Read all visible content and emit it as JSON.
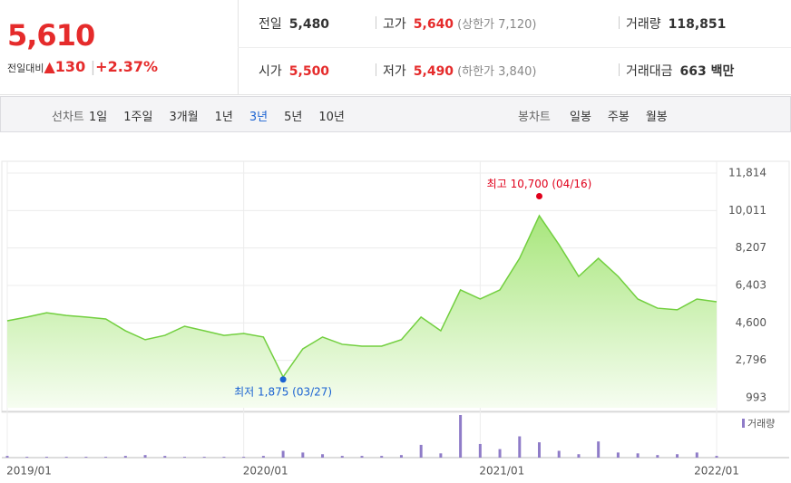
{
  "quote": {
    "price": "5,610",
    "change_label": "전일대비",
    "direction": "▲",
    "change": "130",
    "rate": "+2.37%"
  },
  "summary": {
    "rows": [
      [
        {
          "label": "전일",
          "value": "5,480",
          "note": null
        },
        {
          "label": "고가",
          "value": "5,640",
          "note": "(상한가 7,120)"
        },
        {
          "label": "거래량",
          "value": "118,851",
          "note": null
        }
      ],
      [
        {
          "label": "시가",
          "value": "5,500",
          "note": null
        },
        {
          "label": "저가",
          "value": "5,490",
          "note": "(하한가 3,840)"
        },
        {
          "label": "거래대금",
          "value": "663 백만",
          "note": null
        }
      ]
    ],
    "highlight": [
      [
        false,
        true,
        false
      ],
      [
        true,
        true,
        false
      ]
    ]
  },
  "tabs": {
    "line_label": "선차트",
    "line_items": [
      "1일",
      "1주일",
      "3개월",
      "1년",
      "3년",
      "5년",
      "10년"
    ],
    "selected": 4,
    "candle_label": "봉차트",
    "candle_items": [
      "일봉",
      "주봉",
      "월봉"
    ]
  },
  "chart_data": {
    "type": "area",
    "color": "#72cf3f",
    "categories": [
      "2019/01",
      null,
      null,
      null,
      null,
      null,
      null,
      null,
      null,
      null,
      null,
      null,
      "2020/01",
      null,
      null,
      null,
      null,
      null,
      null,
      null,
      null,
      null,
      null,
      null,
      "2021/01",
      null,
      null,
      null,
      null,
      null,
      null,
      null,
      null,
      null,
      null,
      null,
      "2022/01"
    ],
    "values": [
      4700,
      4880,
      5090,
      4960,
      4880,
      4790,
      4220,
      3790,
      4000,
      4440,
      4220,
      4000,
      4090,
      3920,
      2000,
      3350,
      3920,
      3570,
      3480,
      3480,
      3790,
      4880,
      4220,
      6190,
      5750,
      6190,
      7710,
      9760,
      8370,
      6840,
      7710,
      6840,
      5750,
      5310,
      5230,
      5750,
      5620
    ],
    "ylim": [
      993,
      11814
    ],
    "yticks": [
      {
        "value": 993,
        "label": "993"
      },
      {
        "value": 2796,
        "label": "2,796"
      },
      {
        "value": 4600,
        "label": "4,600"
      },
      {
        "value": 6403,
        "label": "6,403"
      },
      {
        "value": 8207,
        "label": "8,207"
      },
      {
        "value": 10011,
        "label": "10,011"
      },
      {
        "value": 11814,
        "label": "11,814"
      }
    ],
    "grid": true,
    "annotations": [
      {
        "text": "최고 10,700 (04/16)",
        "value": 10700,
        "color": "#e0001b"
      },
      {
        "text": "최저 1,875 (03/27)",
        "value": 1875,
        "color": "#1b63d2"
      }
    ],
    "volume": {
      "name": "거래량",
      "color": "#8f7cc8",
      "values": [
        0.2,
        0.1,
        0.1,
        0.1,
        0.1,
        0.1,
        0.2,
        0.3,
        0.2,
        0.1,
        0.1,
        0.1,
        0.1,
        0.2,
        0.8,
        0.6,
        0.4,
        0.2,
        0.2,
        0.2,
        0.3,
        1.5,
        0.5,
        5.0,
        1.6,
        1.0,
        2.5,
        1.8,
        0.8,
        0.4,
        1.9,
        0.6,
        0.5,
        0.3,
        0.4,
        0.6,
        0.2
      ]
    }
  }
}
